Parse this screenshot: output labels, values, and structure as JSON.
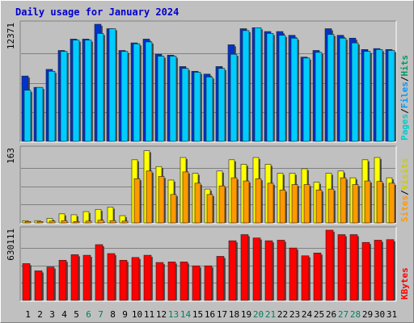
{
  "chart_data": {
    "type": "bar",
    "title": "Daily usage for January 2024",
    "x": [
      "1",
      "2",
      "3",
      "4",
      "5",
      "6",
      "7",
      "8",
      "9",
      "10",
      "11",
      "12",
      "13",
      "14",
      "15",
      "16",
      "17",
      "18",
      "19",
      "20",
      "21",
      "22",
      "23",
      "24",
      "25",
      "26",
      "27",
      "28",
      "29",
      "30",
      "31"
    ],
    "weekend_days": [
      "6",
      "7",
      "13",
      "14",
      "20",
      "21",
      "27",
      "28"
    ],
    "panels": [
      {
        "name": "hits-files-pages",
        "ymax_label": "12371",
        "ymax": 12371,
        "series": [
          {
            "name": "Hits",
            "color": "#0033cc",
            "values": [
              6900,
              5700,
              7600,
              9600,
              10800,
              10800,
              12371,
              11900,
              9600,
              10400,
              10800,
              9200,
              9100,
              7900,
              7400,
              7100,
              7900,
              10200,
              11900,
              12000,
              11600,
              11600,
              11200,
              8900,
              9600,
              11900,
              11200,
              10900,
              9700,
              9800,
              9700
            ]
          },
          {
            "name": "Files",
            "color": "#00ccff",
            "values": [
              5400,
              5700,
              7400,
              9500,
              10700,
              10700,
              11400,
              11900,
              9500,
              10300,
              10500,
              9000,
              9000,
              7700,
              7300,
              6800,
              7700,
              9200,
              11700,
              12000,
              11400,
              11200,
              10900,
              8800,
              9400,
              11300,
              10900,
              10400,
              9500,
              9700,
              9600
            ]
          },
          {
            "name": "Pages",
            "color": "#00cccc",
            "values": []
          }
        ]
      },
      {
        "name": "visits-sites",
        "ymax_label": "163",
        "ymax": 163,
        "series": [
          {
            "name": "Visits",
            "color": "#ffff00",
            "values": [
              5,
              5,
              10,
              20,
              18,
              25,
              30,
              35,
              16,
              140,
              160,
              125,
              95,
              145,
              110,
              75,
              115,
              140,
              130,
              145,
              130,
              110,
              110,
              120,
              90,
              110,
              115,
              100,
              140,
              145,
              100
            ]
          },
          {
            "name": "Sites",
            "color": "#ff9900",
            "values": [
              3,
              3,
              4,
              5,
              3,
              4,
              6,
              5,
              4,
              98,
              115,
              103,
              63,
              113,
              88,
              63,
              82,
              100,
              93,
              98,
              88,
              73,
              85,
              85,
              73,
              75,
              100,
              85,
              93,
              92,
              88
            ]
          }
        ]
      },
      {
        "name": "kbytes",
        "ymax_label": "630111",
        "ymax": 630111,
        "series": [
          {
            "name": "KBytes",
            "color": "#ff0000",
            "values": [
              330000,
              265000,
              300000,
              360000,
              410000,
              405000,
              500000,
              420000,
              360000,
              385000,
              405000,
              340000,
              345000,
              345000,
              310000,
              310000,
              395000,
              535000,
              590000,
              560000,
              535000,
              540000,
              470000,
              400000,
              425000,
              630111,
              590000,
              590000,
              520000,
              540000,
              545000
            ]
          }
        ]
      }
    ],
    "right_labels": [
      {
        "panel": 0,
        "parts": [
          {
            "text": "Pages",
            "color": "#00cccc"
          },
          {
            "text": "/",
            "color": "#000000"
          },
          {
            "text": "Files",
            "color": "#0099ff"
          },
          {
            "text": "/",
            "color": "#000000"
          },
          {
            "text": "Hits",
            "color": "#009966"
          }
        ]
      },
      {
        "panel": 1,
        "parts": [
          {
            "text": "Sites",
            "color": "#ff9900"
          },
          {
            "text": "/",
            "color": "#000000"
          },
          {
            "text": "Visits",
            "color": "#cccc00"
          }
        ]
      },
      {
        "panel": 2,
        "parts": [
          {
            "text": "KBytes",
            "color": "#ff0000"
          }
        ]
      }
    ],
    "colors": {
      "background": "#c0c0c0",
      "title": "#0000ff",
      "weekday_label": "#000000",
      "weekend_label": "#00805f"
    },
    "grid": true,
    "legend": "right"
  }
}
